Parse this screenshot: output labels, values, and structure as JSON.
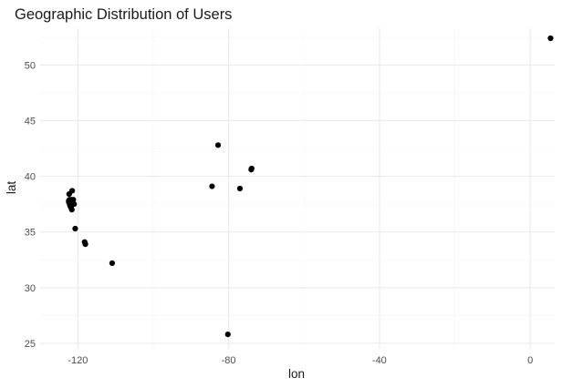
{
  "chart_data": {
    "type": "scatter",
    "title": "Geographic Distribution of Users",
    "xlabel": "lon",
    "ylabel": "lat",
    "xlim": [
      -130,
      6.5
    ],
    "ylim": [
      24.5,
      53.3
    ],
    "x_ticks": [
      -120,
      -80,
      -40,
      0
    ],
    "x_tick_labels": [
      "-120",
      "-80",
      "-40",
      "0"
    ],
    "y_ticks": [
      25,
      30,
      35,
      40,
      45,
      50
    ],
    "y_tick_labels": [
      "25",
      "30",
      "35",
      "40",
      "45",
      "50"
    ],
    "grid": true,
    "legend": "none",
    "point_color": "#000000",
    "grid_major_color": "#ebebeb",
    "grid_minor_color": "#f4f4f4",
    "points": [
      {
        "x": 5.4,
        "y": 52.4
      },
      {
        "x": -82.8,
        "y": 42.8
      },
      {
        "x": -73.9,
        "y": 40.7
      },
      {
        "x": -74.0,
        "y": 40.6
      },
      {
        "x": -84.4,
        "y": 39.1
      },
      {
        "x": -77.0,
        "y": 38.9
      },
      {
        "x": -121.5,
        "y": 38.7
      },
      {
        "x": -122.3,
        "y": 38.4
      },
      {
        "x": -122.4,
        "y": 37.8
      },
      {
        "x": -122.2,
        "y": 37.9
      },
      {
        "x": -121.9,
        "y": 37.7
      },
      {
        "x": -122.3,
        "y": 37.6
      },
      {
        "x": -122.1,
        "y": 37.4
      },
      {
        "x": -121.9,
        "y": 37.3
      },
      {
        "x": -122.0,
        "y": 37.3
      },
      {
        "x": -121.3,
        "y": 37.6
      },
      {
        "x": -121.0,
        "y": 37.5
      },
      {
        "x": -121.8,
        "y": 37.2
      },
      {
        "x": -121.6,
        "y": 37.0
      },
      {
        "x": -122.4,
        "y": 37.7
      },
      {
        "x": -121.2,
        "y": 37.9
      },
      {
        "x": -121.7,
        "y": 37.9
      },
      {
        "x": -120.7,
        "y": 35.3
      },
      {
        "x": -118.2,
        "y": 34.1
      },
      {
        "x": -118.0,
        "y": 33.9
      },
      {
        "x": -110.9,
        "y": 32.2
      },
      {
        "x": -80.2,
        "y": 25.8
      }
    ]
  }
}
